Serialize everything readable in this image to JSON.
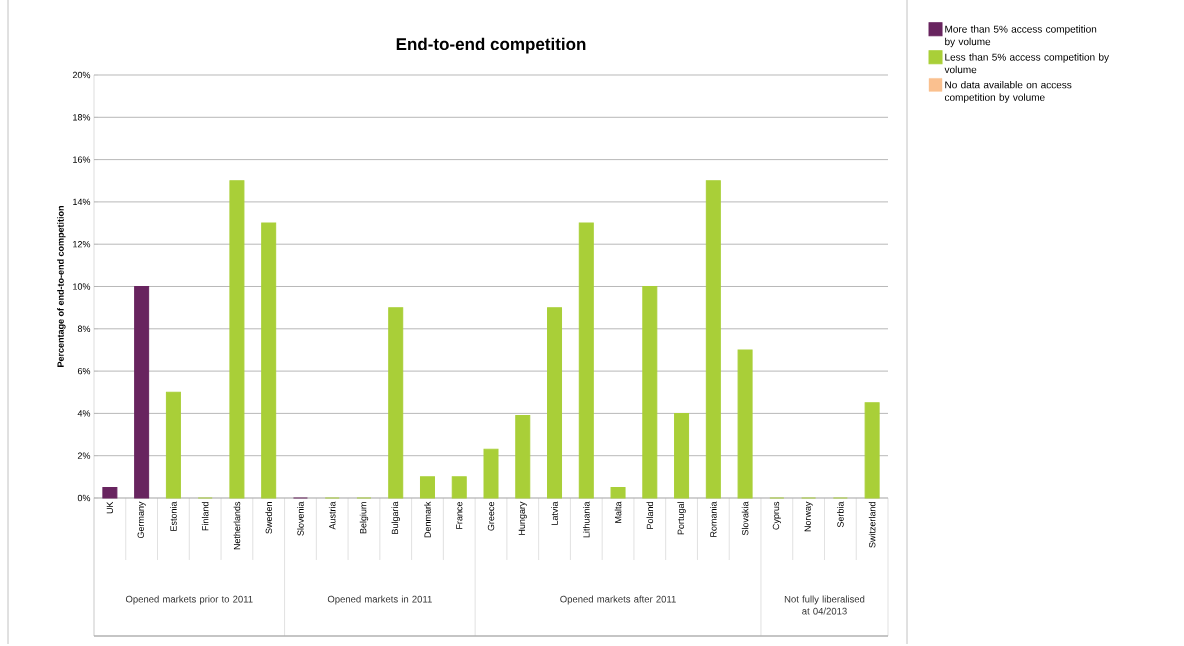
{
  "chart_data": {
    "type": "bar",
    "title": "End-to-end competition",
    "ylabel": "Percentage of end-to-end competition",
    "categories": [
      "UK",
      "Germany",
      "Estonia",
      "Finland",
      "Netherlands",
      "Sweden",
      "Slovenia",
      "Austria",
      "Belgium",
      "Bulgaria",
      "Denmark",
      "France",
      "Greece",
      "Hungary",
      "Latvia",
      "Lithuania",
      "Malta",
      "Poland",
      "Portugal",
      "Romania",
      "Slovakia",
      "Cyprus",
      "Norway",
      "Serbia",
      "Switzerland"
    ],
    "series": [
      {
        "name": "More than 5% access competition by volume",
        "color": "#68245f",
        "values": [
          0.5,
          10,
          null,
          null,
          null,
          null,
          0,
          null,
          null,
          null,
          null,
          null,
          null,
          null,
          null,
          null,
          null,
          null,
          null,
          null,
          null,
          null,
          null,
          null,
          null
        ]
      },
      {
        "name": "Less than 5% access competition by volume",
        "color": "#a9cf38",
        "values": [
          null,
          null,
          5,
          0,
          15,
          13,
          null,
          0,
          0,
          9,
          1,
          1,
          2.3,
          3.9,
          9,
          13,
          0.5,
          10,
          4,
          15,
          7,
          0,
          0,
          0,
          4.5
        ]
      },
      {
        "name": "No data available on access competition by volume",
        "color": "#fac08f",
        "values": [
          null,
          null,
          null,
          null,
          null,
          null,
          null,
          null,
          null,
          null,
          null,
          null,
          null,
          null,
          null,
          null,
          null,
          null,
          null,
          null,
          null,
          null,
          null,
          null,
          null
        ]
      }
    ],
    "ylim": [
      0,
      20
    ],
    "yticks": [
      {
        "value": 0,
        "label": "0%"
      },
      {
        "value": 2,
        "label": "2%"
      },
      {
        "value": 4,
        "label": "4%"
      },
      {
        "value": 6,
        "label": "6%"
      },
      {
        "value": 8,
        "label": "8%"
      },
      {
        "value": 10,
        "label": "10%"
      },
      {
        "value": 12,
        "label": "12%"
      },
      {
        "value": 14,
        "label": "14%"
      },
      {
        "value": 16,
        "label": "16%"
      },
      {
        "value": 18,
        "label": "18%"
      },
      {
        "value": 20,
        "label": "20%"
      }
    ],
    "grid": "y",
    "legend": "top right",
    "annotations": [
      "Opened markets prior to 2011",
      "Opened markets in 2011",
      "Opened markets after 2011",
      "Not fully liberalised at 04/2013"
    ]
  }
}
